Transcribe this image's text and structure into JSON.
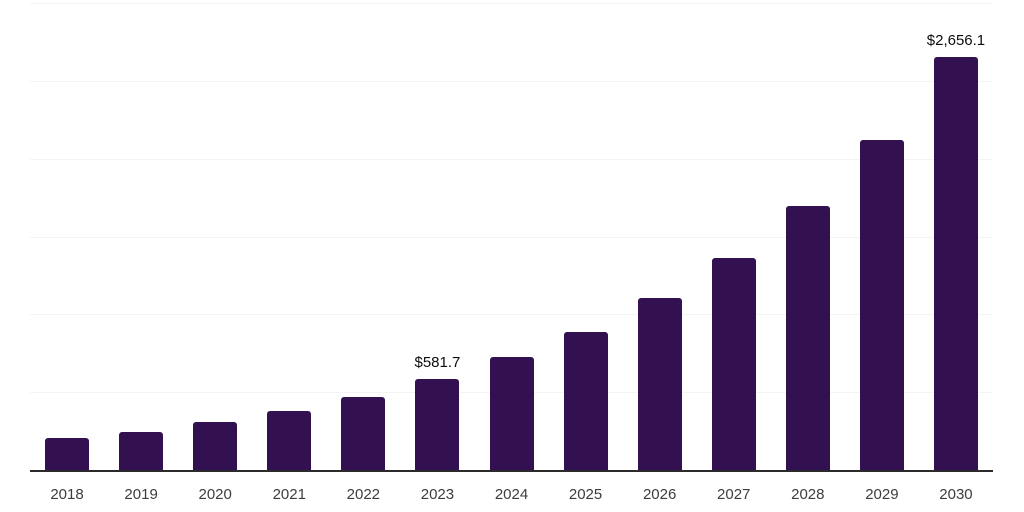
{
  "chart_data": {
    "type": "bar",
    "title": "",
    "xlabel": "",
    "ylabel": "",
    "categories": [
      "2018",
      "2019",
      "2020",
      "2021",
      "2022",
      "2023",
      "2024",
      "2025",
      "2026",
      "2027",
      "2028",
      "2029",
      "2030"
    ],
    "values": [
      207,
      247,
      311,
      381,
      467,
      581.7,
      723,
      886,
      1102,
      1360,
      1696,
      2123,
      2656.1
    ],
    "value_labels": {
      "2023": "$581.7",
      "2030": "$2,656.1"
    },
    "ylim": [
      0,
      3000
    ],
    "gridline_step": 500,
    "grid": true,
    "legend_position": "none"
  },
  "style": {
    "bar_color": "#331150",
    "axis_line_color": "#2b2b2b",
    "gridline_color": "#f3f3f3",
    "x_label_color": "#3d3d3d",
    "value_label_color": "#0d0d0d",
    "background_color": "#ffffff"
  }
}
